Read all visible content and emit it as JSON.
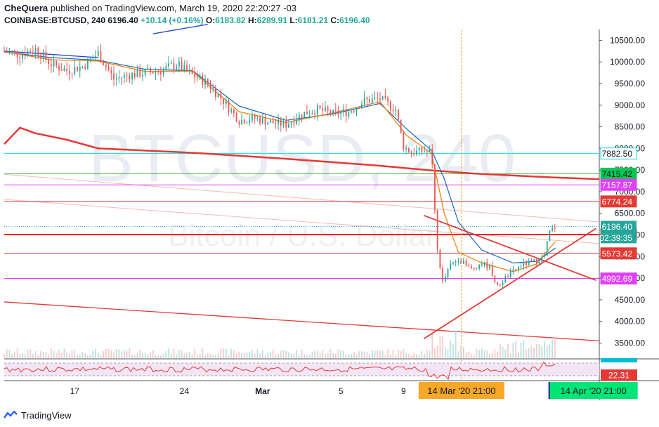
{
  "header": {
    "author": "CheQuera",
    "published_text": "published on TradingView.com, March 19, 2020 22:20:27 -03",
    "symbol": "COINBASE:BTCUSD, 240",
    "last": "6196.40",
    "change": "+10.14 (+0.16%)",
    "o_label": "O:",
    "o_value": "6183.82",
    "h_label": "H:",
    "h_value": "6289.91",
    "l_label": "L:",
    "l_value": "6181.21",
    "c_label": "C:",
    "c_value": "6196.40"
  },
  "watermark": {
    "ticker": "BTCUSD, 240",
    "name": "Bitcoin / U.S. Dollar"
  },
  "chart_data": {
    "type": "candlestick",
    "symbol": "BTCUSD",
    "timeframe": "240",
    "ylim": [
      3150,
      10750
    ],
    "y_ticks": [
      3500,
      4000,
      4500,
      5000,
      5500,
      6000,
      6500,
      7000,
      7500,
      8000,
      8500,
      9000,
      9500,
      10000,
      10500
    ],
    "x_ticks": [
      {
        "label": "17",
        "day": 17
      },
      {
        "label": "24",
        "day": 24
      },
      {
        "label": "Mar",
        "day": 29
      },
      {
        "label": "5",
        "day": 34
      },
      {
        "label": "9",
        "day": 38
      }
    ],
    "x_range_days": [
      12.5,
      50.5
    ],
    "price_path": [
      [
        12.5,
        10250
      ],
      [
        13.5,
        10180
      ],
      [
        14.5,
        10300
      ],
      [
        15.5,
        9950
      ],
      [
        16.5,
        9800
      ],
      [
        17.5,
        9900
      ],
      [
        18.5,
        10200
      ],
      [
        19.5,
        9600
      ],
      [
        20.5,
        9700
      ],
      [
        21.5,
        9750
      ],
      [
        22.5,
        9800
      ],
      [
        23.5,
        9950
      ],
      [
        24.5,
        9700
      ],
      [
        25.5,
        9500
      ],
      [
        26.5,
        9100
      ],
      [
        27.5,
        8650
      ],
      [
        28.5,
        8700
      ],
      [
        29.5,
        8600
      ],
      [
        30.5,
        8550
      ],
      [
        31.5,
        8800
      ],
      [
        32.5,
        8900
      ],
      [
        33.5,
        8800
      ],
      [
        34.5,
        8850
      ],
      [
        35.5,
        9100
      ],
      [
        36.5,
        9150
      ],
      [
        37.5,
        8900
      ],
      [
        38.0,
        8050
      ],
      [
        38.5,
        7900
      ],
      [
        39.3,
        7950
      ],
      [
        39.8,
        7900
      ],
      [
        40.1,
        5800
      ],
      [
        40.5,
        4900
      ],
      [
        41.0,
        5300
      ],
      [
        41.5,
        5450
      ],
      [
        42.3,
        5200
      ],
      [
        43.0,
        5350
      ],
      [
        43.5,
        5250
      ],
      [
        44.0,
        4800
      ],
      [
        44.5,
        5000
      ],
      [
        45.5,
        5300
      ],
      [
        46.5,
        5400
      ],
      [
        47.0,
        5500
      ],
      [
        47.3,
        6050
      ],
      [
        47.7,
        6200
      ]
    ],
    "ma_fast": [
      [
        12.5,
        10240
      ],
      [
        15.5,
        10050
      ],
      [
        18.5,
        10020
      ],
      [
        21.5,
        9780
      ],
      [
        24.5,
        9790
      ],
      [
        27.5,
        8850
      ],
      [
        30.5,
        8600
      ],
      [
        33.5,
        8820
      ],
      [
        36.5,
        9080
      ],
      [
        38.2,
        8300
      ],
      [
        39.8,
        7880
      ],
      [
        40.6,
        6500
      ],
      [
        41.5,
        5600
      ],
      [
        43.0,
        5350
      ],
      [
        45.0,
        5150
      ],
      [
        46.5,
        5330
      ],
      [
        47.7,
        5850
      ]
    ],
    "ma_mid": [
      [
        12.5,
        10230
      ],
      [
        15.5,
        10100
      ],
      [
        18.5,
        10040
      ],
      [
        21.5,
        9830
      ],
      [
        24.5,
        9800
      ],
      [
        27.5,
        8980
      ],
      [
        30.5,
        8650
      ],
      [
        33.5,
        8800
      ],
      [
        36.5,
        9040
      ],
      [
        38.2,
        8450
      ],
      [
        39.8,
        7950
      ],
      [
        40.6,
        7300
      ],
      [
        41.5,
        6300
      ],
      [
        43.0,
        5650
      ],
      [
        45.0,
        5350
      ],
      [
        46.5,
        5390
      ],
      [
        47.7,
        5700
      ]
    ],
    "ma_200": [
      [
        12.5,
        8100
      ],
      [
        13.5,
        8480
      ],
      [
        14.5,
        8350
      ],
      [
        16.5,
        8200
      ],
      [
        18.5,
        8000
      ],
      [
        21.5,
        7950
      ],
      [
        24.5,
        7900
      ],
      [
        27.5,
        7830
      ],
      [
        30.5,
        7760
      ],
      [
        33.5,
        7680
      ],
      [
        36.5,
        7600
      ],
      [
        39.5,
        7500
      ],
      [
        42.5,
        7420
      ],
      [
        47.5,
        7330
      ],
      [
        50.5,
        7290
      ]
    ],
    "trendline_blue": [
      [
        12.5,
        10250
      ],
      [
        18.5,
        10100
      ]
    ],
    "trendline_blue_top": [
      [
        22.0,
        10650
      ],
      [
        25.5,
        10870
      ]
    ],
    "trendlines_red": [
      [
        [
          39.3,
          6450
        ],
        [
          50.3,
          4950
        ]
      ],
      [
        [
          39.3,
          3600
        ],
        [
          50.3,
          6150
        ]
      ],
      [
        [
          12.5,
          4450
        ],
        [
          50.5,
          3550
        ]
      ]
    ],
    "channel_lines_faint": [
      [
        [
          12.5,
          7400
        ],
        [
          50.5,
          6300
        ]
      ],
      [
        [
          12.5,
          6820
        ],
        [
          50.5,
          5800
        ]
      ]
    ],
    "horizontal_levels": [
      {
        "price": 7882.5,
        "label": "7882.50",
        "line_color": "#00e5e5",
        "box_color": "#ffffff",
        "text_color": "#131722"
      },
      {
        "price": 7415.42,
        "label": "7415.42",
        "line_color": "#43b243",
        "box_color": "#00c853",
        "text_color": "#131722"
      },
      {
        "price": 7157.87,
        "label": "7157.87",
        "line_color": "#e040fb",
        "box_color": "#e040fb",
        "text_color": "#ffffff"
      },
      {
        "price": 6774.24,
        "label": "6774.24",
        "line_color": "#e53935",
        "box_color": "#e53935",
        "text_color": "#ffffff"
      },
      {
        "price": 6008.73,
        "label": "6008.73",
        "line_color": "#ff1a1a",
        "box_color": "#e53935",
        "text_color": "#ffffff"
      },
      {
        "price": 5573.42,
        "label": "5573.42",
        "line_color": "#e53935",
        "box_color": "#e53935",
        "text_color": "#ffffff"
      },
      {
        "price": 4992.69,
        "label": "4992.69",
        "line_color": "#e040fb",
        "box_color": "#e040fb",
        "text_color": "#ffffff"
      }
    ],
    "last_price": {
      "price": 6196.4,
      "label": "6196.40",
      "countdown": "02:39:35",
      "color": "#26a69a"
    },
    "vertical_marker": {
      "day": 41.7,
      "color": "#f7a828"
    },
    "time_labels": [
      {
        "day": 41.7,
        "text": "14 Mar '20   21:00",
        "bg": "#f7a828"
      },
      {
        "day": 47.3,
        "text": "14 Apr '20   21:00",
        "bg": "#00e676"
      }
    ],
    "rsi": {
      "label": "22.31",
      "label_bg": "#e53935",
      "band_color": "#f3e5f5",
      "line_color": "#e53935"
    },
    "colors": {
      "up": "#26a69a",
      "down": "#ef5350",
      "ma_fast": "#f57c00",
      "ma_mid": "#1565c0",
      "ma_200": "#e53935",
      "blue_trend": "#1e3fcc"
    }
  },
  "footer": {
    "brand": "TradingView"
  }
}
